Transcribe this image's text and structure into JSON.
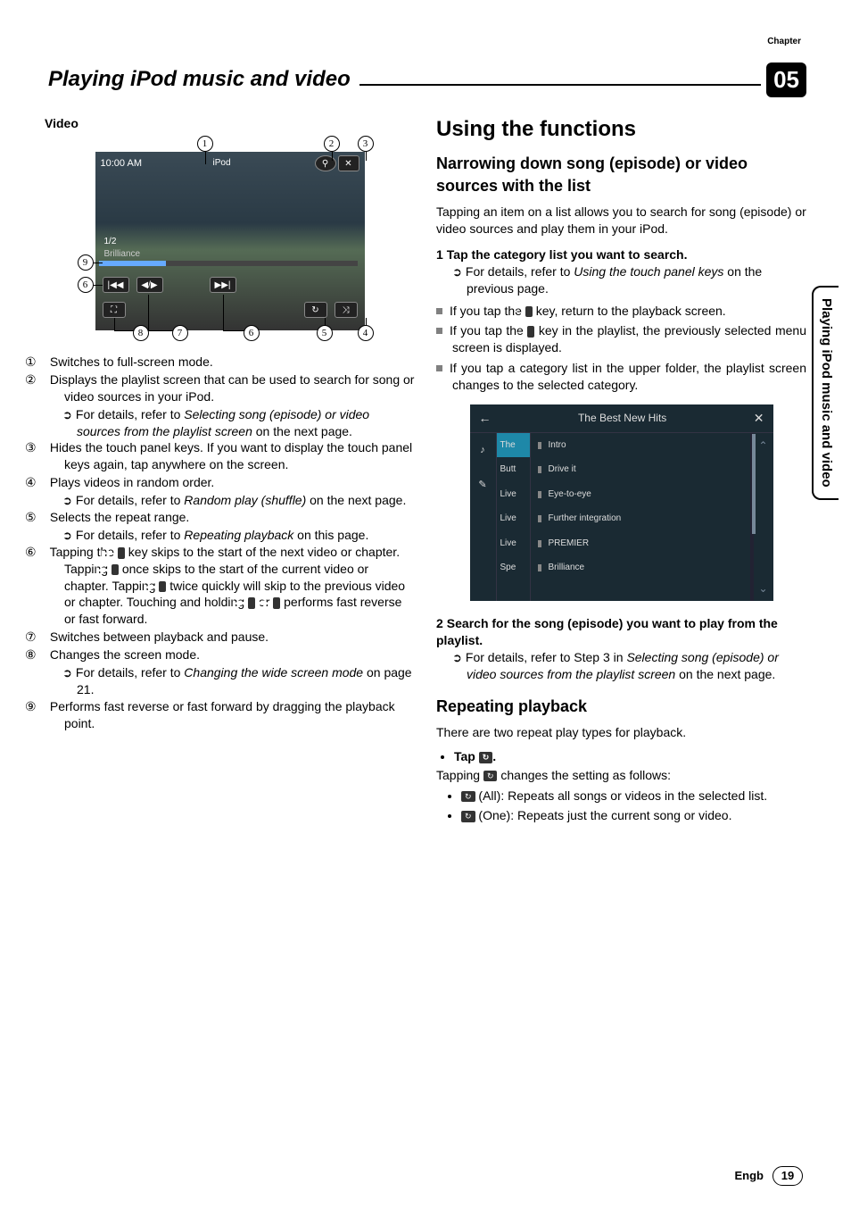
{
  "chapter_label": "Chapter",
  "chapter_number": "05",
  "chapter_title": "Playing iPod music and video",
  "sidebar_tab": "Playing iPod music and video",
  "footer_lang": "Engb",
  "footer_page": "19",
  "left": {
    "video_label": "Video",
    "ui": {
      "time": "10:00 AM",
      "source": "iPod",
      "count": "1/2",
      "track": "Brilliance",
      "btn_search": "⚲",
      "btn_close": "✕",
      "btn_prev": "|◀◀",
      "btn_play": "◀/▶",
      "btn_next": "▶▶|",
      "btn_mode": "⛶",
      "btn_repeat": "↻",
      "btn_shuffle": "⤨"
    },
    "callouts": [
      "1",
      "2",
      "3",
      "4",
      "5",
      "6",
      "7",
      "8",
      "9"
    ],
    "items": [
      {
        "n": "①",
        "t": "Switches to full-screen mode."
      },
      {
        "n": "②",
        "t": "Displays the playlist screen that can be used to search for song or video sources in your iPod.",
        "ref": "For details, refer to ",
        "ref_em": "Selecting song (episode) or video sources from the playlist screen",
        "ref_tail": " on the next page."
      },
      {
        "n": "③",
        "t": "Hides the touch panel keys. If you want to display the touch panel keys again, tap anywhere on the screen."
      },
      {
        "n": "④",
        "t": "Plays videos in random order.",
        "ref": "For details, refer to ",
        "ref_em": "Random play (shuffle)",
        "ref_tail": " on the next page."
      },
      {
        "n": "⑤",
        "t": "Selects the repeat range.",
        "ref": "For details, refer to ",
        "ref_em": "Repeating playback",
        "ref_tail": " on this page."
      },
      {
        "n": "⑥",
        "t_pre": "Tapping the ",
        "icon1": "▶▶|",
        "t_mid": " key skips to the start of the next video or chapter. Tapping ",
        "icon2": "|◀◀",
        "t_mid2": " once skips to the start of the current video or chapter. Tapping ",
        "icon3": "|◀◀",
        "t_mid3": " twice quickly will skip to the previous video or chapter. Touching and holding ",
        "icon4": "|◀◀",
        "t_mid4": " or ",
        "icon5": "▶▶|",
        "t_tail": " performs fast reverse or fast forward."
      },
      {
        "n": "⑦",
        "t": "Switches between playback and pause."
      },
      {
        "n": "⑧",
        "t": "Changes the screen mode.",
        "ref": "For details, refer to ",
        "ref_em": "Changing the wide screen mode",
        "ref_tail": " on page 21."
      },
      {
        "n": "⑨",
        "t": "Performs fast reverse or fast forward by dragging the playback point."
      }
    ]
  },
  "right": {
    "h1": "Using the functions",
    "h2_narrow": "Narrowing down song (episode) or video sources with the list",
    "p_narrow": "Tapping an item on a list allows you to search for song (episode) or video sources and play them in your iPod.",
    "step1": "Tap the category list you want to search.",
    "step1_ref": "For details, refer to ",
    "step1_em": "Using the touch panel keys",
    "step1_tail": " on the previous page.",
    "bullets": [
      {
        "pre": "If you tap the ",
        "icon": "✕",
        "post": " key, return to the playback screen."
      },
      {
        "pre": "If you tap the ",
        "icon": "←",
        "post": " key in the playlist, the previously selected menu screen is displayed."
      },
      {
        "pre": "",
        "icon": "",
        "post": "If you tap a category list in the upper folder, the playlist screen changes to the selected category."
      }
    ],
    "playlist": {
      "title": "The Best New Hits",
      "back": "←",
      "close": "✕",
      "left_icons": [
        "♪",
        "✎"
      ],
      "cats": [
        "The",
        "Butt",
        "Live",
        "Live",
        "Live",
        "Spe"
      ],
      "tracks": [
        "Intro",
        "Drive it",
        "Eye-to-eye",
        "Further integration",
        "PREMIER",
        "Brilliance"
      ],
      "up": "⌃",
      "down": "⌄"
    },
    "step2": "Search for the song (episode) you want to play from the playlist.",
    "step2_ref": "For details, refer to Step 3 in ",
    "step2_em": "Selecting song (episode) or video sources from the playlist screen",
    "step2_tail": " on the next page.",
    "h2_repeat": "Repeating playback",
    "p_repeat": "There are two repeat play types for playback.",
    "tap_label": "Tap ",
    "tap_icon": "↻",
    "tap_period": ".",
    "p_tap_pre": "Tapping ",
    "p_tap_icon": "↻",
    "p_tap_post": " changes the setting as follows:",
    "rep_items": [
      {
        "icon": "↻",
        "label": "(All): Repeats all songs or videos in the selected list."
      },
      {
        "icon": "↻",
        "label": "(One): Repeats just the current song or video."
      }
    ]
  }
}
